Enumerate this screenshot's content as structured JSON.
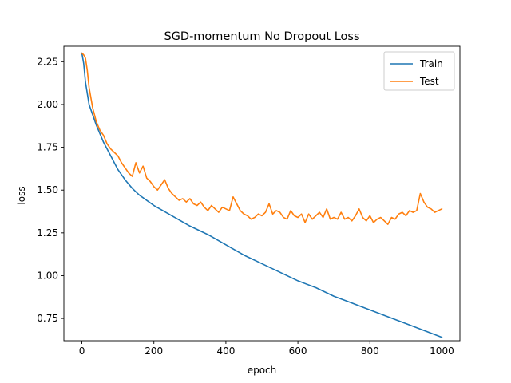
{
  "chart_data": {
    "type": "line",
    "title": "SGD-momentum No Dropout Loss",
    "xlabel": "epoch",
    "ylabel": "loss",
    "xlim": [
      -50,
      1050
    ],
    "ylim": [
      0.62,
      2.34
    ],
    "xticks": [
      0,
      200,
      400,
      600,
      800,
      1000
    ],
    "yticks": [
      0.75,
      1.0,
      1.25,
      1.5,
      1.75,
      2.0,
      2.25
    ],
    "xtick_labels": [
      "0",
      "200",
      "400",
      "600",
      "800",
      "1000"
    ],
    "ytick_labels": [
      "0.75",
      "1.00",
      "1.25",
      "1.50",
      "1.75",
      "2.00",
      "2.25"
    ],
    "grid": false,
    "legend_position": "top-right",
    "series": [
      {
        "name": "Train",
        "color": "#1f77b4",
        "points": [
          [
            0,
            2.3
          ],
          [
            5,
            2.24
          ],
          [
            10,
            2.13
          ],
          [
            20,
            2.0
          ],
          [
            40,
            1.88
          ],
          [
            60,
            1.78
          ],
          [
            80,
            1.7
          ],
          [
            100,
            1.62
          ],
          [
            120,
            1.56
          ],
          [
            140,
            1.51
          ],
          [
            160,
            1.47
          ],
          [
            180,
            1.44
          ],
          [
            200,
            1.41
          ],
          [
            250,
            1.35
          ],
          [
            300,
            1.29
          ],
          [
            350,
            1.24
          ],
          [
            400,
            1.18
          ],
          [
            450,
            1.12
          ],
          [
            500,
            1.07
          ],
          [
            550,
            1.02
          ],
          [
            600,
            0.97
          ],
          [
            650,
            0.93
          ],
          [
            700,
            0.88
          ],
          [
            750,
            0.84
          ],
          [
            800,
            0.8
          ],
          [
            850,
            0.76
          ],
          [
            900,
            0.72
          ],
          [
            950,
            0.68
          ],
          [
            1000,
            0.64
          ]
        ]
      },
      {
        "name": "Test",
        "color": "#ff7f0e",
        "points": [
          [
            0,
            2.3
          ],
          [
            5,
            2.29
          ],
          [
            10,
            2.27
          ],
          [
            15,
            2.2
          ],
          [
            20,
            2.1
          ],
          [
            30,
            1.98
          ],
          [
            40,
            1.9
          ],
          [
            50,
            1.85
          ],
          [
            60,
            1.82
          ],
          [
            70,
            1.77
          ],
          [
            80,
            1.74
          ],
          [
            90,
            1.72
          ],
          [
            100,
            1.7
          ],
          [
            110,
            1.66
          ],
          [
            120,
            1.63
          ],
          [
            130,
            1.6
          ],
          [
            140,
            1.58
          ],
          [
            150,
            1.66
          ],
          [
            160,
            1.6
          ],
          [
            170,
            1.64
          ],
          [
            180,
            1.57
          ],
          [
            190,
            1.55
          ],
          [
            200,
            1.52
          ],
          [
            210,
            1.5
          ],
          [
            220,
            1.53
          ],
          [
            230,
            1.56
          ],
          [
            240,
            1.51
          ],
          [
            250,
            1.48
          ],
          [
            260,
            1.46
          ],
          [
            270,
            1.44
          ],
          [
            280,
            1.45
          ],
          [
            290,
            1.43
          ],
          [
            300,
            1.45
          ],
          [
            310,
            1.42
          ],
          [
            320,
            1.41
          ],
          [
            330,
            1.43
          ],
          [
            340,
            1.4
          ],
          [
            350,
            1.38
          ],
          [
            360,
            1.41
          ],
          [
            370,
            1.39
          ],
          [
            380,
            1.37
          ],
          [
            390,
            1.4
          ],
          [
            400,
            1.39
          ],
          [
            410,
            1.38
          ],
          [
            420,
            1.46
          ],
          [
            430,
            1.42
          ],
          [
            440,
            1.38
          ],
          [
            450,
            1.36
          ],
          [
            460,
            1.35
          ],
          [
            470,
            1.33
          ],
          [
            480,
            1.34
          ],
          [
            490,
            1.36
          ],
          [
            500,
            1.35
          ],
          [
            510,
            1.37
          ],
          [
            520,
            1.42
          ],
          [
            530,
            1.36
          ],
          [
            540,
            1.38
          ],
          [
            550,
            1.37
          ],
          [
            560,
            1.34
          ],
          [
            570,
            1.33
          ],
          [
            580,
            1.38
          ],
          [
            590,
            1.35
          ],
          [
            600,
            1.34
          ],
          [
            610,
            1.36
          ],
          [
            620,
            1.31
          ],
          [
            630,
            1.36
          ],
          [
            640,
            1.33
          ],
          [
            650,
            1.35
          ],
          [
            660,
            1.37
          ],
          [
            670,
            1.34
          ],
          [
            680,
            1.39
          ],
          [
            690,
            1.33
          ],
          [
            700,
            1.34
          ],
          [
            710,
            1.33
          ],
          [
            720,
            1.37
          ],
          [
            730,
            1.33
          ],
          [
            740,
            1.34
          ],
          [
            750,
            1.32
          ],
          [
            760,
            1.35
          ],
          [
            770,
            1.39
          ],
          [
            780,
            1.34
          ],
          [
            790,
            1.32
          ],
          [
            800,
            1.35
          ],
          [
            810,
            1.31
          ],
          [
            820,
            1.33
          ],
          [
            830,
            1.34
          ],
          [
            840,
            1.32
          ],
          [
            850,
            1.3
          ],
          [
            860,
            1.34
          ],
          [
            870,
            1.33
          ],
          [
            880,
            1.36
          ],
          [
            890,
            1.37
          ],
          [
            900,
            1.35
          ],
          [
            910,
            1.38
          ],
          [
            920,
            1.37
          ],
          [
            930,
            1.38
          ],
          [
            940,
            1.48
          ],
          [
            950,
            1.43
          ],
          [
            960,
            1.4
          ],
          [
            970,
            1.39
          ],
          [
            980,
            1.37
          ],
          [
            990,
            1.38
          ],
          [
            1000,
            1.39
          ]
        ]
      }
    ]
  }
}
